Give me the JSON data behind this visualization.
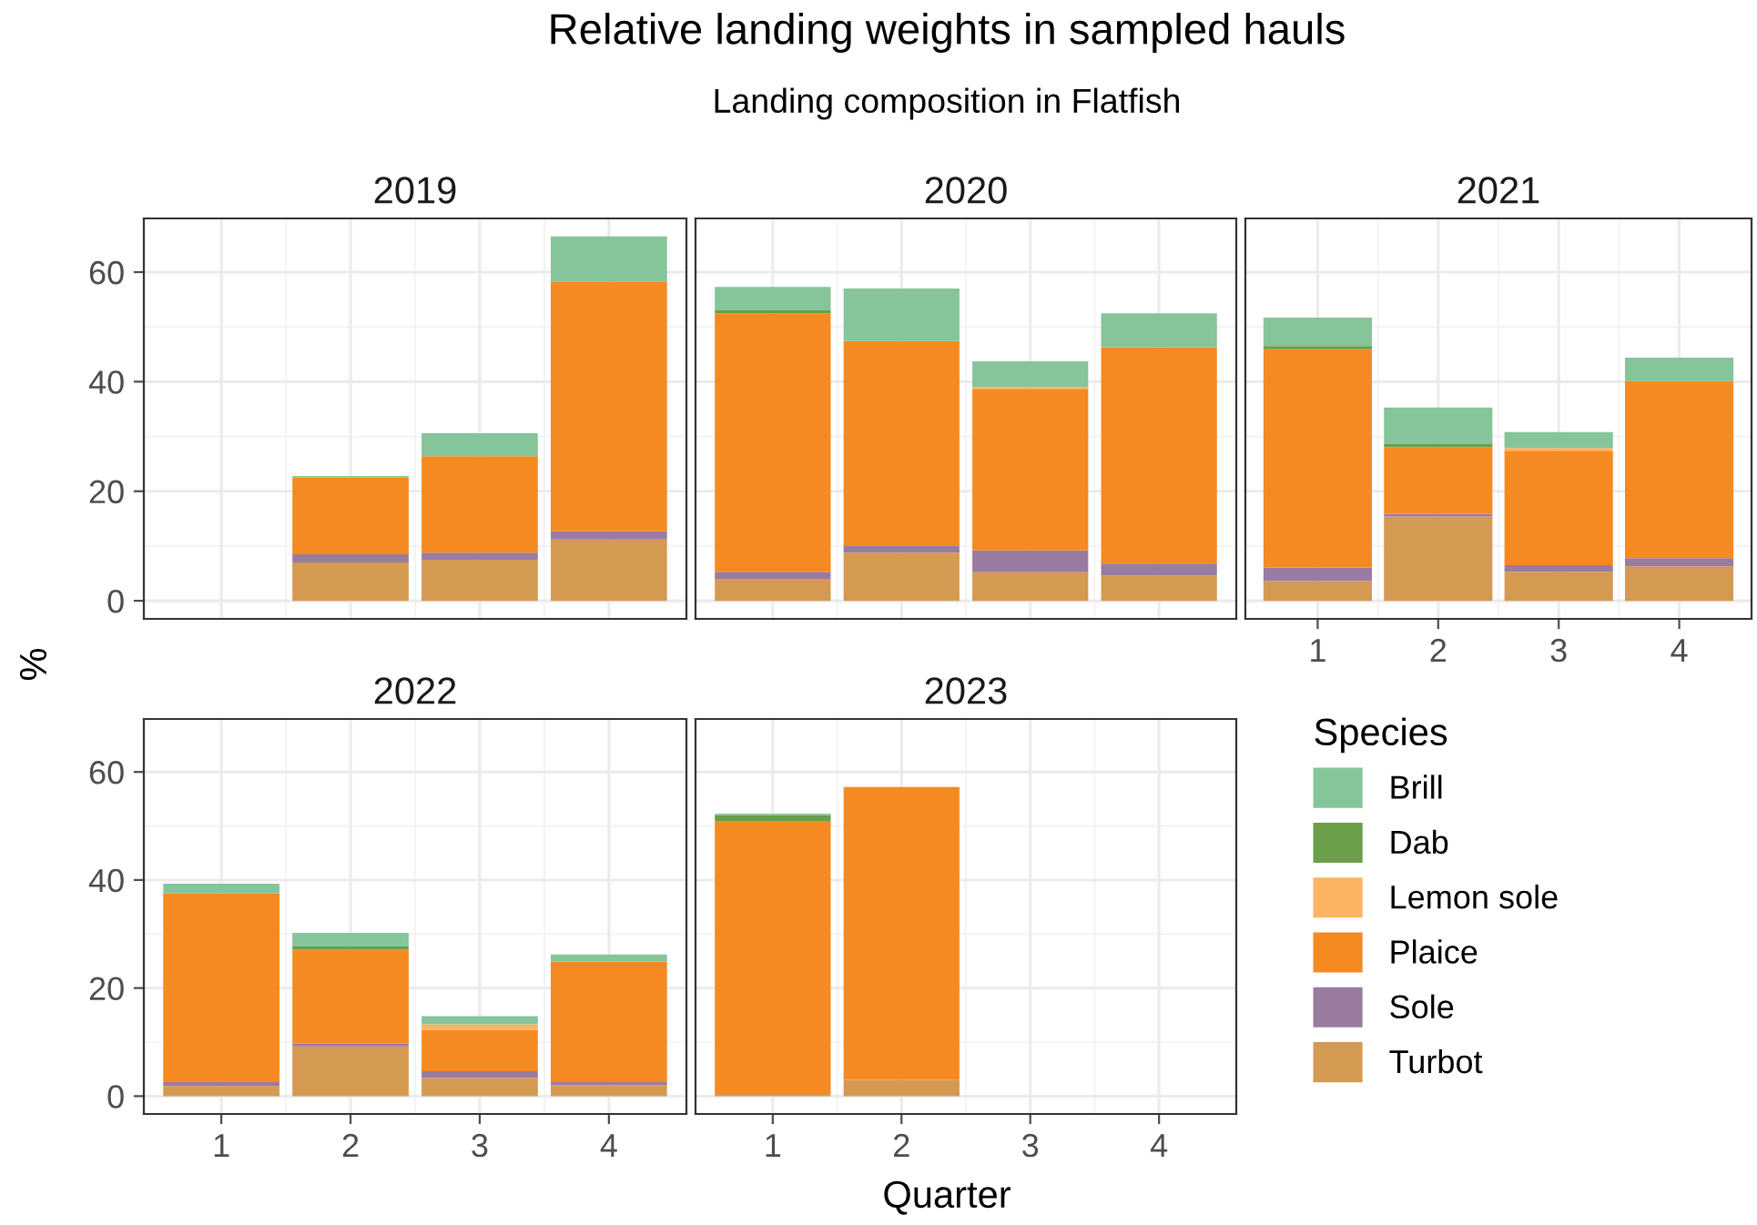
{
  "chart_data": [
    {
      "type": "bar",
      "stacked": true,
      "title": "2019",
      "ylabel": "%",
      "legend": "right",
      "legend_title": "Species",
      "annotations": [
        "Relative landing weights in sampled hauls",
        "Landing composition in Flatfish"
      ],
      "categories": [
        "1",
        "2",
        "3",
        "4"
      ],
      "ylim": [
        -3.3,
        69.8
      ],
      "yticks": [
        0,
        20,
        40,
        60
      ],
      "grid": true,
      "tick_labels": "y",
      "series": [
        {
          "name": "Turbot",
          "color": "#d49a52",
          "values": [
            null,
            7.0,
            7.5,
            11.2
          ]
        },
        {
          "name": "Sole",
          "color": "#9a7ba0",
          "values": [
            null,
            1.5,
            1.3,
            1.5
          ]
        },
        {
          "name": "Plaice",
          "color": "#f58a22",
          "values": [
            null,
            14.0,
            17.6,
            45.6
          ]
        },
        {
          "name": "Lemon sole",
          "color": "#fdb462",
          "values": [
            null,
            0,
            0,
            0
          ]
        },
        {
          "name": "Dab",
          "color": "#6a9e48",
          "values": [
            null,
            0,
            0,
            0
          ]
        },
        {
          "name": "Brill",
          "color": "#86c49a",
          "values": [
            null,
            0.3,
            4.2,
            8.2
          ]
        }
      ]
    },
    {
      "type": "bar",
      "stacked": true,
      "title": "2020",
      "categories": [
        "1",
        "2",
        "3",
        "4"
      ],
      "ylim": [
        -3.3,
        69.8
      ],
      "yticks": [
        0,
        20,
        40,
        60
      ],
      "grid": true,
      "tick_labels": false,
      "series": [
        {
          "color": "#d49a52",
          "values": [
            4.0,
            8.8,
            5.2,
            4.6
          ]
        },
        {
          "color": "#9a7ba0",
          "values": [
            1.3,
            1.3,
            4.0,
            2.2
          ]
        },
        {
          "color": "#f58a22",
          "values": [
            47.2,
            37.3,
            29.5,
            39.5
          ]
        },
        {
          "color": "#fdb462",
          "values": [
            0,
            0,
            0.3,
            0
          ]
        },
        {
          "color": "#6a9e48",
          "values": [
            0.5,
            0,
            0,
            0
          ]
        },
        {
          "color": "#86c49a",
          "values": [
            4.3,
            9.6,
            4.7,
            6.2
          ]
        }
      ]
    },
    {
      "type": "bar",
      "stacked": true,
      "title": "2021",
      "categories": [
        "1",
        "2",
        "3",
        "4"
      ],
      "ylim": [
        -3.3,
        69.8
      ],
      "yticks": [
        0,
        20,
        40,
        60
      ],
      "grid": true,
      "tick_labels": "x",
      "series": [
        {
          "color": "#d49a52",
          "values": [
            3.6,
            15.4,
            5.3,
            6.3
          ]
        },
        {
          "color": "#9a7ba0",
          "values": [
            2.5,
            0.5,
            1.2,
            1.5
          ]
        },
        {
          "color": "#f58a22",
          "values": [
            39.8,
            12.1,
            20.9,
            32.3
          ]
        },
        {
          "color": "#fdb462",
          "values": [
            0,
            0,
            0.5,
            0
          ]
        },
        {
          "color": "#6a9e48",
          "values": [
            0.6,
            0.6,
            0,
            0
          ]
        },
        {
          "color": "#86c49a",
          "values": [
            5.2,
            6.7,
            2.9,
            4.3
          ]
        }
      ]
    },
    {
      "type": "bar",
      "stacked": true,
      "title": "2022",
      "categories": [
        "1",
        "2",
        "3",
        "4"
      ],
      "ylim": [
        -3.3,
        69.8
      ],
      "yticks": [
        0,
        20,
        40,
        60
      ],
      "grid": true,
      "series": [
        {
          "color": "#d49a52",
          "values": [
            1.9,
            9.2,
            3.4,
            2.0
          ]
        },
        {
          "color": "#9a7ba0",
          "values": [
            0.7,
            0.5,
            1.2,
            0.6
          ]
        },
        {
          "color": "#f58a22",
          "values": [
            34.9,
            17.4,
            7.7,
            22.3
          ]
        },
        {
          "color": "#fdb462",
          "values": [
            0,
            0,
            1.0,
            0
          ]
        },
        {
          "color": "#6a9e48",
          "values": [
            0,
            0.6,
            0,
            0
          ]
        },
        {
          "color": "#86c49a",
          "values": [
            1.8,
            2.5,
            1.5,
            1.3
          ]
        }
      ]
    },
    {
      "type": "bar",
      "stacked": true,
      "title": "2023",
      "xlabel": "Quarter",
      "categories": [
        "1",
        "2",
        "3",
        "4"
      ],
      "ylim": [
        -3.3,
        69.8
      ],
      "yticks": [
        0,
        20,
        40,
        60
      ],
      "grid": true,
      "tick_labels": "x",
      "series": [
        {
          "color": "#d49a52",
          "values": [
            0.4,
            3.0,
            null,
            null
          ]
        },
        {
          "color": "#9a7ba0",
          "values": [
            0,
            0,
            null,
            null
          ]
        },
        {
          "color": "#f58a22",
          "values": [
            50.4,
            54.2,
            null,
            null
          ]
        },
        {
          "color": "#fdb462",
          "values": [
            0,
            0,
            null,
            null
          ]
        },
        {
          "color": "#6a9e48",
          "values": [
            1.2,
            0,
            null,
            null
          ]
        },
        {
          "color": "#86c49a",
          "values": [
            0.3,
            0,
            null,
            null
          ]
        }
      ]
    }
  ]
}
